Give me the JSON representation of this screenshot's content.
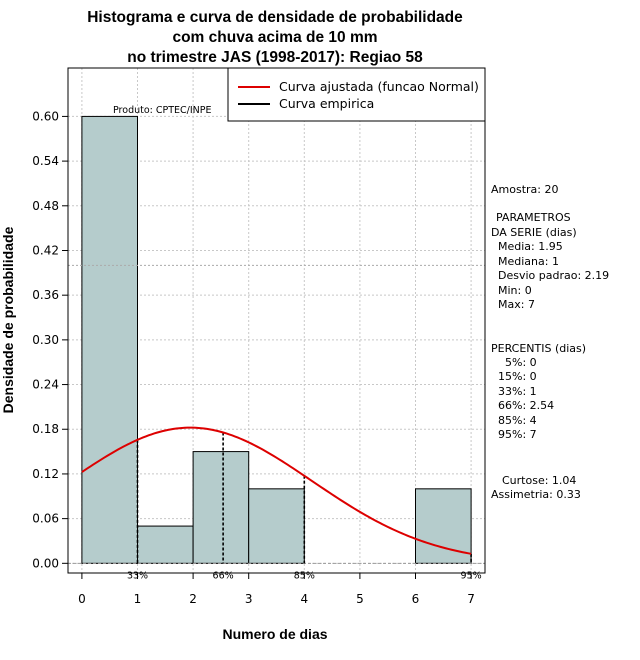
{
  "chart_data": {
    "type": "bar",
    "title": [
      "Histograma e curva de densidade de probabilidade",
      "com chuva acima de 10 mm",
      "no trimestre JAS (1998-2017): Regiao 58"
    ],
    "xlabel": "Numero de dias",
    "ylabel": "Densidade de probabilidade",
    "xlim": [
      -0.25,
      7.25
    ],
    "ylim": [
      -0.013,
      0.665
    ],
    "x_ticks": [
      0,
      1,
      2,
      3,
      4,
      5,
      6,
      7
    ],
    "y_ticks": [
      0.0,
      0.06,
      0.12,
      0.18,
      0.24,
      0.3,
      0.36,
      0.42,
      0.48,
      0.54,
      0.6
    ],
    "y_tick_labels": [
      "0.00",
      "0.06",
      "0.12",
      "0.18",
      "0.24",
      "0.30",
      "0.36",
      "0.42",
      "0.48",
      "0.54",
      "0.60"
    ],
    "grid": true,
    "hline_dotted": 0.4,
    "bins": [
      {
        "from": 0,
        "to": 1,
        "density": 0.6
      },
      {
        "from": 1,
        "to": 2,
        "density": 0.05
      },
      {
        "from": 2,
        "to": 3,
        "density": 0.15
      },
      {
        "from": 3,
        "to": 4,
        "density": 0.1
      },
      {
        "from": 4,
        "to": 5,
        "density": 0.0
      },
      {
        "from": 5,
        "to": 6,
        "density": 0.0
      },
      {
        "from": 6,
        "to": 7,
        "density": 0.1
      }
    ],
    "bar_color": "#b5cccc",
    "normal_curve": {
      "mean": 1.95,
      "sd": 2.19,
      "color": "#dd0000"
    },
    "percentile_markers": [
      {
        "x": 1.0,
        "label": "33%"
      },
      {
        "x": 2.54,
        "label": "66%"
      },
      {
        "x": 4.0,
        "label": "85%"
      },
      {
        "x": 7.0,
        "label": "95%"
      }
    ],
    "legend": [
      {
        "label": "Curva ajustada (funcao Normal)",
        "color": "#dd0000"
      },
      {
        "label": "Curva empirica",
        "color": "#000000"
      }
    ],
    "legend_position": "top-right",
    "product_label": "Produto: CPTEC/INPE"
  },
  "stats": {
    "amostra": "Amostra: 20",
    "param_title_1": "PARAMETROS",
    "param_title_2": "DA SERIE (dias)",
    "media": "Media: 1.95",
    "mediana": "Mediana: 1",
    "desvio": "Desvio padrao: 2.19",
    "min": "Min: 0",
    "max": "Max: 7",
    "perc_title": "PERCENTIS (dias)",
    "p5": "5%: 0",
    "p15": "15%: 0",
    "p33": "33%: 1",
    "p66": "66%: 2.54",
    "p85": "85%: 4",
    "p95": "95%: 7",
    "curtose": "Curtose: 1.04",
    "assimetria": "Assimetria: 0.33"
  }
}
